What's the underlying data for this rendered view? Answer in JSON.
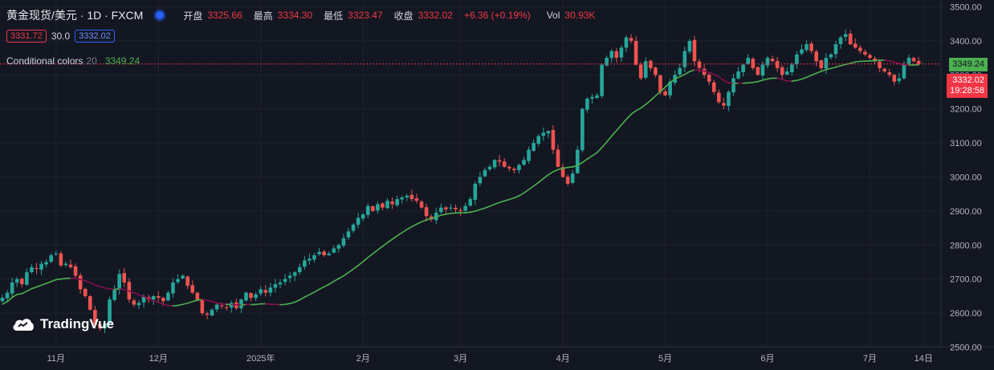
{
  "header": {
    "symbol": "黄金现货/美元 · 1D · FXCM",
    "open_label": "开盘",
    "open": "3325.66",
    "high_label": "最高",
    "high": "3334.30",
    "low_label": "最低",
    "low": "3323.47",
    "close_label": "收盘",
    "close": "3332.02",
    "change": "+6.36 (+0.19%)",
    "vol_label": "Vol",
    "vol": "30.93K"
  },
  "quick_order": {
    "sell_price": "3331.72",
    "spread": "30.0",
    "buy_price": "3332.02"
  },
  "indicator": {
    "name": "Conditional colors",
    "length": "20",
    "value": "3349.24"
  },
  "price_tags": {
    "ma": "3349.24",
    "last": "3332.02",
    "countdown": "19:28:58"
  },
  "logo": {
    "text": "TradingVue"
  },
  "colors": {
    "background": "#131722",
    "up": "#26a69a",
    "down": "#ef5350",
    "ma_up": "#4caf50",
    "ma_down": "#880e4f",
    "grid": "#1e222d",
    "axis_text": "#b2b5be"
  },
  "chart_data": {
    "type": "candlestick",
    "title": "",
    "xlabel": "",
    "ylabel": "",
    "ylim": [
      2480,
      3520
    ],
    "y_ticks": [
      2500,
      2600,
      2700,
      2800,
      2900,
      3000,
      3100,
      3200,
      3300,
      3400,
      3500
    ],
    "y_tick_labels": [
      "2500.00",
      "2600.00",
      "2700.00",
      "2800.00",
      "2900.00",
      "3000.00",
      "3100.00",
      "3200.00",
      "3300.00",
      "3400.00",
      "3500.00"
    ],
    "x_ticks": [
      {
        "label": "11月",
        "index": 11
      },
      {
        "label": "12月",
        "index": 32
      },
      {
        "label": "2025年",
        "index": 53
      },
      {
        "label": "2月",
        "index": 74
      },
      {
        "label": "3月",
        "index": 94
      },
      {
        "label": "4月",
        "index": 115
      },
      {
        "label": "5月",
        "index": 136
      },
      {
        "label": "6月",
        "index": 157
      },
      {
        "label": "7月",
        "index": 178
      },
      {
        "label": "14日",
        "index": 189
      }
    ],
    "last_price": 3332.02,
    "ma_last": 3349.24,
    "closes": [
      2645,
      2660,
      2690,
      2700,
      2685,
      2720,
      2735,
      2730,
      2745,
      2750,
      2770,
      2775,
      2740,
      2745,
      2735,
      2710,
      2670,
      2650,
      2610,
      2565,
      2555,
      2570,
      2640,
      2670,
      2715,
      2690,
      2640,
      2625,
      2630,
      2650,
      2640,
      2650,
      2645,
      2635,
      2660,
      2690,
      2700,
      2710,
      2680,
      2660,
      2640,
      2600,
      2595,
      2610,
      2625,
      2620,
      2615,
      2630,
      2615,
      2640,
      2660,
      2645,
      2655,
      2670,
      2660,
      2675,
      2685,
      2690,
      2700,
      2710,
      2720,
      2735,
      2755,
      2760,
      2770,
      2780,
      2770,
      2775,
      2790,
      2800,
      2820,
      2840,
      2860,
      2880,
      2890,
      2915,
      2900,
      2920,
      2910,
      2930,
      2920,
      2935,
      2940,
      2945,
      2935,
      2930,
      2910,
      2885,
      2875,
      2895,
      2910,
      2905,
      2910,
      2905,
      2900,
      2915,
      2935,
      2980,
      3000,
      3020,
      3030,
      3050,
      3045,
      3030,
      3025,
      3020,
      3035,
      3050,
      3080,
      3100,
      3120,
      3130,
      3135,
      3080,
      3030,
      3000,
      2980,
      3010,
      3080,
      3200,
      3230,
      3235,
      3240,
      3330,
      3350,
      3370,
      3350,
      3380,
      3410,
      3400,
      3330,
      3290,
      3340,
      3320,
      3300,
      3250,
      3240,
      3280,
      3300,
      3320,
      3370,
      3400,
      3340,
      3320,
      3300,
      3280,
      3250,
      3220,
      3210,
      3250,
      3290,
      3310,
      3330,
      3350,
      3320,
      3300,
      3330,
      3350,
      3340,
      3320,
      3300,
      3310,
      3330,
      3360,
      3375,
      3390,
      3370,
      3340,
      3320,
      3350,
      3360,
      3390,
      3410,
      3420,
      3390,
      3380,
      3370,
      3360,
      3350,
      3340,
      3320,
      3310,
      3300,
      3280,
      3290,
      3330,
      3350,
      3340,
      3332
    ]
  }
}
